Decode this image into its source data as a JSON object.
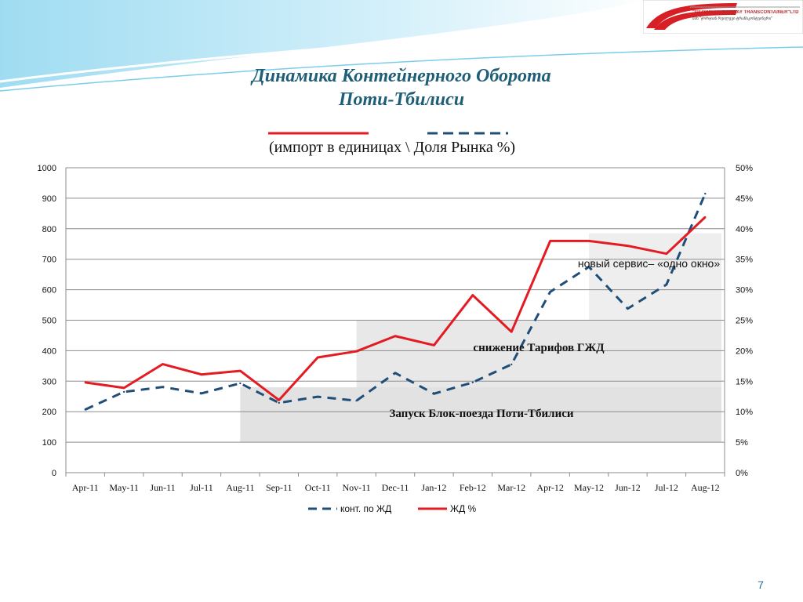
{
  "slide": {
    "title_line1": "Динамика Контейнерного Оборота",
    "title_line2": "Поти-Тбилиси",
    "subtitle": "(импорт в единицах \\ Доля Рынка %)",
    "page_number": "7",
    "logo": {
      "name": "\"GEORGIAN RAILWAY TRANSCONTAINER\"LTD",
      "georgian": "შპს \"ჯორჯიან რეილვეი ტრანსკონტეინერი\""
    },
    "colors": {
      "title": "#1f5e78",
      "red_series": "#e31b23",
      "blue_series": "#1f4e79",
      "band": "#e6e6e6"
    }
  },
  "chart_data": {
    "type": "line",
    "categories": [
      "Apr-11",
      "May-11",
      "Jun-11",
      "Jul-11",
      "Aug-11",
      "Sep-11",
      "Oct-11",
      "Nov-11",
      "Dec-11",
      "Jan-12",
      "Feb-12",
      "Mar-12",
      "Apr-12",
      "May-12",
      "Jun-12",
      "Jul-12",
      "Aug-12"
    ],
    "y_left": {
      "min": 0,
      "max": 1000,
      "step": 100,
      "ticks": [
        "0",
        "100",
        "200",
        "300",
        "400",
        "500",
        "600",
        "700",
        "800",
        "900",
        "1000"
      ]
    },
    "y_right": {
      "min": 0,
      "max": 50,
      "step": 5,
      "ticks": [
        "0%",
        "5%",
        "10%",
        "15%",
        "20%",
        "25%",
        "30%",
        "35%",
        "40%",
        "45%",
        "50%"
      ]
    },
    "grid": true,
    "legend_position": "bottom",
    "series": [
      {
        "name": "конт. по ЖД",
        "axis": "left",
        "style": "dashed",
        "color": "#1f4e79",
        "values": [
          207,
          265,
          281,
          260,
          293,
          229,
          249,
          236,
          327,
          259,
          296,
          355,
          593,
          675,
          538,
          617,
          915
        ]
      },
      {
        "name": "ЖД  %",
        "axis": "right",
        "style": "solid",
        "color": "#e31b23",
        "values": [
          14.8,
          13.9,
          17.8,
          16.1,
          16.7,
          11.9,
          18.9,
          19.9,
          22.4,
          20.9,
          29.1,
          23.1,
          38.0,
          38.0,
          37.2,
          35.9,
          41.9
        ]
      }
    ],
    "annotations": [
      {
        "text": "новый сервис– «одно окно»",
        "from": "May-12",
        "to": "Aug-12",
        "value_top": 785
      },
      {
        "text": "снижение Тарифов ГЖД",
        "from": "Nov-11",
        "to": "Aug-12",
        "value_top": 500
      },
      {
        "text": "Запуск Блок-поезда Поти-Тбилиси",
        "from": "Aug-11",
        "to": "Aug-12",
        "value_top": 280
      }
    ]
  }
}
